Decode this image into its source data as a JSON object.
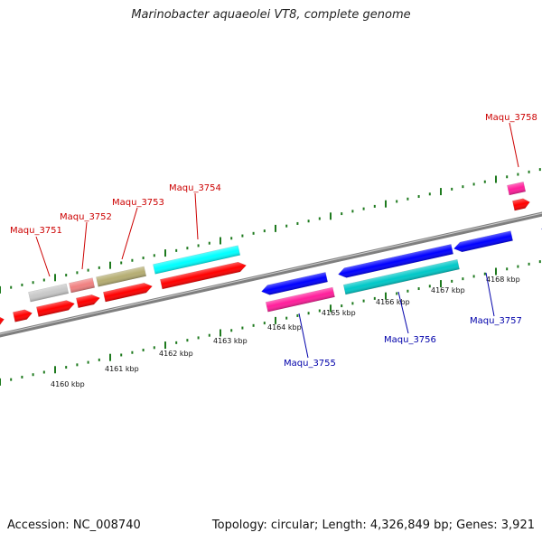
{
  "title": "Marinobacter aquaeolei VT8, complete genome",
  "footer": {
    "accession": "Accession: NC_008740",
    "summary": "Topology: circular; Length: 4,326,849 bp; Genes: 3,921"
  },
  "colors": {
    "backbone": "#8a8a8a",
    "forward_label": "#cc0000",
    "reverse_label": "#0000aa",
    "tick": "#1e7a1e",
    "cds": "#ff0000"
  },
  "scale_labels": [
    "4160 kbp",
    "4161 kbp",
    "4162 kbp",
    "4163 kbp",
    "4164 kbp",
    "4165 kbp",
    "4166 kbp",
    "4167 kbp",
    "4168 kbp"
  ],
  "forward_labels": [
    "Maqu_3751",
    "Maqu_3752",
    "Maqu_3753",
    "Maqu_3754",
    "Maqu_3758"
  ],
  "reverse_labels": [
    "Maqu_3755",
    "Maqu_3756",
    "Maqu_3757"
  ]
}
